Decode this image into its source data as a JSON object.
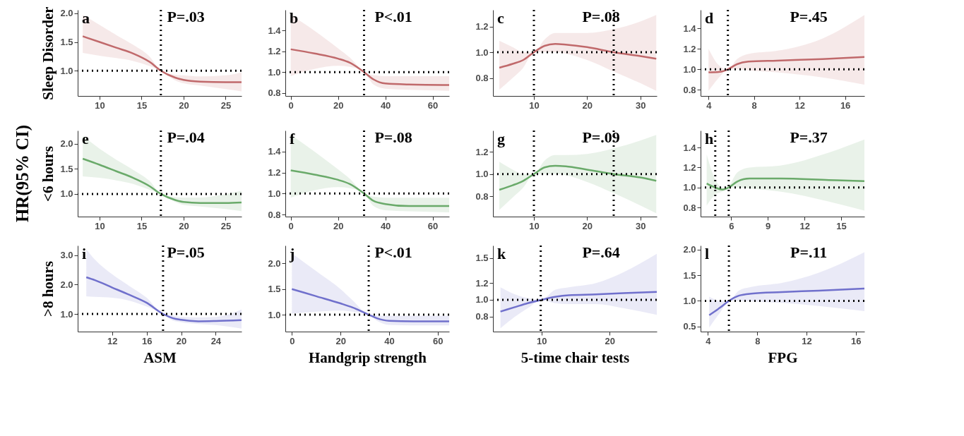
{
  "chart_data": [
    {
      "type": "line",
      "ylabel": "Sleep Disorder",
      "xlim": [
        7.4,
        26.9
      ],
      "ylim": [
        0.56,
        2.06
      ],
      "xticks": [
        10,
        15,
        20,
        25
      ],
      "yticks": [
        {
          "value": 1,
          "label": "1.0"
        },
        1.5,
        {
          "value": 2,
          "label": "2.0"
        }
      ],
      "series": [
        {
          "color": "#c0696b",
          "x": [
            8,
            10,
            12,
            14,
            16,
            17.3,
            19,
            20,
            22,
            25,
            26.9
          ],
          "values": [
            1.6,
            1.5,
            1.4,
            1.3,
            1.15,
            1.0,
            0.88,
            0.84,
            0.81,
            0.8,
            0.8
          ],
          "lower": [
            1.31,
            1.26,
            1.22,
            1.17,
            1.08,
            1.0,
            0.83,
            0.78,
            0.74,
            0.68,
            0.64
          ],
          "upper": [
            1.97,
            1.8,
            1.62,
            1.45,
            1.24,
            1.0,
            0.93,
            0.92,
            0.9,
            0.92,
            0.97
          ]
        }
      ],
      "ref_lines": [
        {
          "axis": "x",
          "value": 17.3,
          "color": "#000000",
          "line_style": "dotted"
        },
        {
          "axis": "y",
          "value": 1,
          "color": "#000000",
          "line_style": "dotted"
        }
      ],
      "annotations": [
        "a",
        "P=.03"
      ]
    },
    {
      "type": "line",
      "xlim": [
        -2.3,
        67
      ],
      "ylim": [
        0.77,
        1.6
      ],
      "xticks": [
        0,
        20,
        40,
        60
      ],
      "yticks": [
        0.8,
        {
          "value": 1,
          "label": "1.0"
        },
        1.2,
        1.4
      ],
      "series": [
        {
          "color": "#c0696b",
          "x": [
            0,
            10,
            20,
            25,
            31,
            35,
            40,
            50,
            67
          ],
          "values": [
            1.22,
            1.18,
            1.13,
            1.09,
            1.0,
            0.93,
            0.89,
            0.88,
            0.875
          ],
          "lower": [
            0.96,
            1.03,
            1.06,
            1.05,
            1.0,
            0.88,
            0.84,
            0.83,
            0.82
          ],
          "upper": [
            1.55,
            1.4,
            1.23,
            1.14,
            1.0,
            0.97,
            0.96,
            0.96,
            0.96
          ]
        }
      ],
      "ref_lines": [
        {
          "axis": "x",
          "value": 31,
          "color": "#000000",
          "line_style": "dotted"
        },
        {
          "axis": "y",
          "value": 1,
          "color": "#000000",
          "line_style": "dotted"
        }
      ],
      "annotations": [
        "b",
        "P<.01"
      ]
    },
    {
      "type": "line",
      "xlim": [
        2.3,
        33.1
      ],
      "ylim": [
        0.66,
        1.33
      ],
      "xticks": [
        10,
        20,
        30
      ],
      "yticks": [
        0.8,
        {
          "value": 1,
          "label": "1.0"
        },
        1.2
      ],
      "series": [
        {
          "color": "#c0696b",
          "x": [
            3.5,
            6,
            8,
            10,
            12,
            14,
            16,
            20,
            25,
            30,
            33
          ],
          "values": [
            0.88,
            0.91,
            0.94,
            1.0,
            1.05,
            1.065,
            1.06,
            1.04,
            1.0,
            0.97,
            0.95
          ],
          "lower": [
            0.71,
            0.8,
            0.88,
            1.0,
            1.0,
            1.0,
            0.99,
            0.94,
            0.85,
            0.76,
            0.7
          ],
          "upper": [
            1.09,
            1.04,
            1.0,
            1.0,
            1.1,
            1.15,
            1.15,
            1.15,
            1.18,
            1.24,
            1.29
          ]
        }
      ],
      "ref_lines": [
        {
          "axis": "x",
          "value": 10,
          "color": "#000000",
          "line_style": "dotted"
        },
        {
          "axis": "x",
          "value": 25,
          "color": "#000000",
          "line_style": "dotted"
        },
        {
          "axis": "y",
          "value": 1,
          "color": "#000000",
          "line_style": "dotted"
        }
      ],
      "annotations": [
        "c",
        "P=.08"
      ]
    },
    {
      "type": "line",
      "xlim": [
        3.3,
        17.7
      ],
      "ylim": [
        0.74,
        1.58
      ],
      "xticks": [
        4,
        8,
        12,
        16
      ],
      "yticks": [
        0.8,
        {
          "value": 1,
          "label": "1.0"
        },
        1.2,
        1.4
      ],
      "series": [
        {
          "color": "#c0696b",
          "x": [
            4,
            5,
            5.7,
            6.5,
            7.5,
            10,
            14,
            17.7
          ],
          "values": [
            0.97,
            0.975,
            1.0,
            1.05,
            1.075,
            1.085,
            1.1,
            1.12
          ],
          "lower": [
            0.79,
            0.93,
            1.0,
            1.0,
            0.99,
            0.97,
            0.92,
            0.85
          ],
          "upper": [
            1.2,
            1.03,
            1.0,
            1.1,
            1.15,
            1.18,
            1.3,
            1.53
          ]
        }
      ],
      "ref_lines": [
        {
          "axis": "x",
          "value": 5.7,
          "color": "#000000",
          "line_style": "dotted"
        },
        {
          "axis": "y",
          "value": 1,
          "color": "#000000",
          "line_style": "dotted"
        }
      ],
      "annotations": [
        "d",
        "P=.45"
      ]
    },
    {
      "type": "line",
      "ylabel": "<6 hours",
      "xlim": [
        7.4,
        26.9
      ],
      "ylim": [
        0.55,
        2.26
      ],
      "xticks": [
        10,
        15,
        20,
        25
      ],
      "yticks": [
        {
          "value": 1,
          "label": "1.0"
        },
        1.5,
        {
          "value": 2,
          "label": "2.0"
        }
      ],
      "series": [
        {
          "color": "#6aaa6a",
          "x": [
            8,
            10,
            12,
            14,
            16,
            17.3,
            19,
            20,
            22,
            25,
            26.9
          ],
          "values": [
            1.7,
            1.58,
            1.45,
            1.32,
            1.15,
            1.0,
            0.88,
            0.84,
            0.82,
            0.82,
            0.83
          ],
          "lower": [
            1.35,
            1.32,
            1.27,
            1.2,
            1.08,
            1.0,
            0.84,
            0.78,
            0.75,
            0.7,
            0.66
          ],
          "upper": [
            2.15,
            1.9,
            1.68,
            1.48,
            1.25,
            1.0,
            0.94,
            0.93,
            0.93,
            1.0,
            1.06
          ]
        }
      ],
      "ref_lines": [
        {
          "axis": "x",
          "value": 17.3,
          "color": "#000000",
          "line_style": "dotted"
        },
        {
          "axis": "y",
          "value": 1,
          "color": "#000000",
          "line_style": "dotted"
        }
      ],
      "annotations": [
        "e",
        "P=.04",
        "HR(95% CI)"
      ]
    },
    {
      "type": "line",
      "xlim": [
        -2.3,
        67
      ],
      "ylim": [
        0.78,
        1.6
      ],
      "xticks": [
        0,
        20,
        40,
        60
      ],
      "yticks": [
        0.8,
        {
          "value": 1,
          "label": "1.0"
        },
        1.2,
        1.4
      ],
      "series": [
        {
          "color": "#6aaa6a",
          "x": [
            0,
            10,
            20,
            25,
            31,
            35,
            40,
            50,
            67
          ],
          "values": [
            1.22,
            1.18,
            1.13,
            1.09,
            1.0,
            0.93,
            0.9,
            0.88,
            0.88
          ],
          "lower": [
            0.96,
            1.03,
            1.06,
            1.05,
            1.0,
            0.88,
            0.84,
            0.83,
            0.82
          ],
          "upper": [
            1.56,
            1.4,
            1.23,
            1.14,
            1.0,
            0.97,
            0.96,
            0.96,
            0.96
          ]
        }
      ],
      "ref_lines": [
        {
          "axis": "x",
          "value": 31,
          "color": "#000000",
          "line_style": "dotted"
        },
        {
          "axis": "y",
          "value": 1,
          "color": "#000000",
          "line_style": "dotted"
        }
      ],
      "annotations": [
        "f",
        "P=.08"
      ]
    },
    {
      "type": "line",
      "xlim": [
        2.3,
        33.1
      ],
      "ylim": [
        0.62,
        1.39
      ],
      "xticks": [
        10,
        20,
        30
      ],
      "yticks": [
        0.8,
        {
          "value": 1,
          "label": "1.0"
        },
        1.2
      ],
      "series": [
        {
          "color": "#6aaa6a",
          "x": [
            3.5,
            6,
            8,
            10,
            12,
            14,
            16,
            20,
            25,
            30,
            33
          ],
          "values": [
            0.86,
            0.9,
            0.94,
            1.0,
            1.06,
            1.075,
            1.07,
            1.04,
            1.0,
            0.97,
            0.94
          ],
          "lower": [
            0.68,
            0.79,
            0.88,
            1.0,
            1.0,
            1.0,
            0.99,
            0.93,
            0.83,
            0.72,
            0.65
          ],
          "upper": [
            1.11,
            1.04,
            1.0,
            1.0,
            1.12,
            1.17,
            1.17,
            1.18,
            1.23,
            1.3,
            1.35
          ]
        }
      ],
      "ref_lines": [
        {
          "axis": "x",
          "value": 10,
          "color": "#000000",
          "line_style": "dotted"
        },
        {
          "axis": "x",
          "value": 25,
          "color": "#000000",
          "line_style": "dotted"
        },
        {
          "axis": "y",
          "value": 1,
          "color": "#000000",
          "line_style": "dotted"
        }
      ],
      "annotations": [
        "g",
        "P=.09"
      ]
    },
    {
      "type": "line",
      "xlim": [
        3.5,
        16.9
      ],
      "ylim": [
        0.71,
        1.57
      ],
      "xticks": [
        6,
        9,
        12,
        15
      ],
      "yticks": [
        0.8,
        {
          "value": 1,
          "label": "1.0"
        },
        1.2,
        1.4
      ],
      "series": [
        {
          "color": "#6aaa6a",
          "x": [
            4,
            4.7,
            5.3,
            5.8,
            6.5,
            7.5,
            10,
            14,
            16.9
          ],
          "values": [
            1.04,
            1.0,
            0.98,
            1.0,
            1.06,
            1.09,
            1.09,
            1.075,
            1.065
          ],
          "lower": [
            0.82,
            0.93,
            0.96,
            1.0,
            1.0,
            0.99,
            0.96,
            0.86,
            0.77
          ],
          "upper": [
            1.33,
            1.08,
            1.0,
            1.02,
            1.15,
            1.2,
            1.22,
            1.35,
            1.48
          ]
        }
      ],
      "ref_lines": [
        {
          "axis": "x",
          "value": 4.7,
          "color": "#000000",
          "line_style": "dotted"
        },
        {
          "axis": "x",
          "value": 5.8,
          "color": "#000000",
          "line_style": "dotted"
        },
        {
          "axis": "y",
          "value": 1,
          "color": "#000000",
          "line_style": "dotted"
        }
      ],
      "annotations": [
        "h",
        "P=.37"
      ]
    },
    {
      "type": "line",
      "ylabel": ">8 hours",
      "xlabel": "ASM",
      "xlim": [
        8.0,
        27.0
      ],
      "ylim": [
        0.4,
        3.33
      ],
      "xticks": [
        12,
        16,
        20,
        24
      ],
      "yticks": [
        {
          "value": 1,
          "label": "1.0"
        },
        {
          "value": 2,
          "label": "2.0"
        },
        {
          "value": 3,
          "label": "3.0"
        }
      ],
      "series": [
        {
          "color": "#7070cc",
          "x": [
            9,
            10,
            12,
            14,
            16,
            17.9,
            19,
            20,
            22,
            24,
            27
          ],
          "values": [
            2.25,
            2.15,
            1.9,
            1.65,
            1.38,
            1.0,
            0.86,
            0.8,
            0.75,
            0.76,
            0.79
          ],
          "lower": [
            1.6,
            1.58,
            1.55,
            1.45,
            1.25,
            1.0,
            0.78,
            0.72,
            0.66,
            0.62,
            0.5
          ],
          "upper": [
            3.2,
            2.85,
            2.35,
            1.95,
            1.55,
            1.0,
            0.95,
            0.9,
            0.88,
            0.9,
            1.15
          ]
        }
      ],
      "ref_lines": [
        {
          "axis": "x",
          "value": 17.9,
          "color": "#000000",
          "line_style": "dotted"
        },
        {
          "axis": "y",
          "value": 1,
          "color": "#000000",
          "line_style": "dotted"
        }
      ],
      "annotations": [
        "i",
        "P=.05"
      ]
    },
    {
      "type": "line",
      "xlabel": "Handgrip strength",
      "xlim": [
        -2.7,
        64.7
      ],
      "ylim": [
        0.67,
        2.35
      ],
      "xticks": [
        0,
        20,
        40,
        60
      ],
      "yticks": [
        {
          "value": 1,
          "label": "1.0"
        },
        1.5,
        {
          "value": 2,
          "label": "2.0"
        }
      ],
      "series": [
        {
          "color": "#7070cc",
          "x": [
            0,
            10,
            20,
            25,
            31.6,
            35,
            40,
            50,
            64.7
          ],
          "values": [
            1.5,
            1.36,
            1.22,
            1.14,
            1.0,
            0.93,
            0.88,
            0.87,
            0.87
          ],
          "lower": [
            1.02,
            1.06,
            1.08,
            1.06,
            1.0,
            0.88,
            0.8,
            0.79,
            0.79
          ],
          "upper": [
            2.2,
            1.85,
            1.5,
            1.28,
            1.0,
            0.98,
            0.98,
            0.98,
            0.98
          ]
        }
      ],
      "ref_lines": [
        {
          "axis": "x",
          "value": 31.6,
          "color": "#000000",
          "line_style": "dotted"
        },
        {
          "axis": "y",
          "value": 1,
          "color": "#000000",
          "line_style": "dotted"
        }
      ],
      "annotations": [
        "j",
        "P<.01"
      ]
    },
    {
      "type": "line",
      "xlabel": "5-time chair tests",
      "xlim": [
        2.9,
        26.9
      ],
      "ylim": [
        0.62,
        1.65
      ],
      "xticks": [
        10,
        20
      ],
      "yticks": [
        0.8,
        {
          "value": 1,
          "label": "1.0"
        },
        1.2,
        1.5
      ],
      "series": [
        {
          "color": "#7070cc",
          "x": [
            4,
            6,
            8,
            10,
            12,
            14,
            18,
            22,
            26.9
          ],
          "values": [
            0.86,
            0.91,
            0.96,
            1.0,
            1.035,
            1.055,
            1.065,
            1.08,
            1.095
          ],
          "lower": [
            0.66,
            0.79,
            0.9,
            1.0,
            0.96,
            0.95,
            0.95,
            0.9,
            0.82
          ],
          "upper": [
            1.15,
            1.07,
            1.02,
            1.0,
            1.12,
            1.15,
            1.2,
            1.33,
            1.55
          ]
        }
      ],
      "ref_lines": [
        {
          "axis": "x",
          "value": 9.9,
          "color": "#000000",
          "line_style": "dotted"
        },
        {
          "axis": "y",
          "value": 1,
          "color": "#000000",
          "line_style": "dotted"
        }
      ],
      "annotations": [
        "k",
        "P=.64"
      ]
    },
    {
      "type": "line",
      "xlabel": "FPG",
      "xlim": [
        3.4,
        16.7
      ],
      "ylim": [
        0.4,
        2.08
      ],
      "xticks": [
        4,
        8,
        12,
        16
      ],
      "yticks": [
        0.5,
        {
          "value": 1,
          "label": "1.0"
        },
        1.5,
        {
          "value": 2,
          "label": "2.0"
        }
      ],
      "series": [
        {
          "color": "#7070cc",
          "x": [
            4.1,
            5,
            5.7,
            6.5,
            7.5,
            10,
            13,
            16.7
          ],
          "values": [
            0.72,
            0.87,
            1.0,
            1.1,
            1.14,
            1.17,
            1.2,
            1.24
          ],
          "lower": [
            0.48,
            0.78,
            1.0,
            1.0,
            0.99,
            0.96,
            0.9,
            0.8
          ],
          "upper": [
            1.08,
            1.0,
            1.0,
            1.2,
            1.27,
            1.35,
            1.55,
            1.95
          ]
        }
      ],
      "ref_lines": [
        {
          "axis": "x",
          "value": 5.7,
          "color": "#000000",
          "line_style": "dotted"
        },
        {
          "axis": "y",
          "value": 1,
          "color": "#000000",
          "line_style": "dotted"
        }
      ],
      "annotations": [
        "l",
        "P=.11"
      ]
    }
  ]
}
